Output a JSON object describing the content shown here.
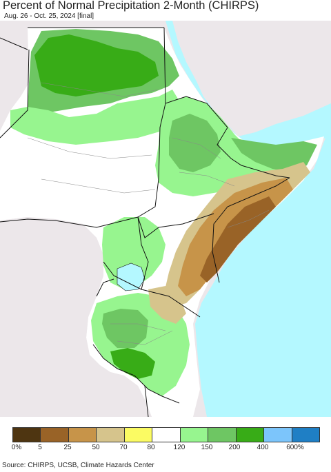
{
  "header": {
    "title": "Percent of Normal Precipitation 2-Month (CHIRPS)",
    "subtitle": "Aug. 26 - Oct. 25, 2024 [final]"
  },
  "legend": {
    "colors": [
      "#4e3511",
      "#996327",
      "#c79449",
      "#d6c48c",
      "#fbfb63",
      "#ffffff",
      "#97f58f",
      "#6ec663",
      "#38ac17",
      "#7cc5fb",
      "#1f7fc5"
    ],
    "labels": [
      "0%",
      "5",
      "25",
      "50",
      "70",
      "80",
      "120",
      "150",
      "200",
      "400",
      "600%"
    ]
  },
  "footer": {
    "source": "Source: CHIRPS, UCSB, Climate Hazards Center"
  },
  "map": {
    "colors": {
      "ocean": "#b4f8ff",
      "outside": "#ece7ea",
      "land": "#ffffff",
      "border": "#111111",
      "admin": "#888888"
    }
  }
}
